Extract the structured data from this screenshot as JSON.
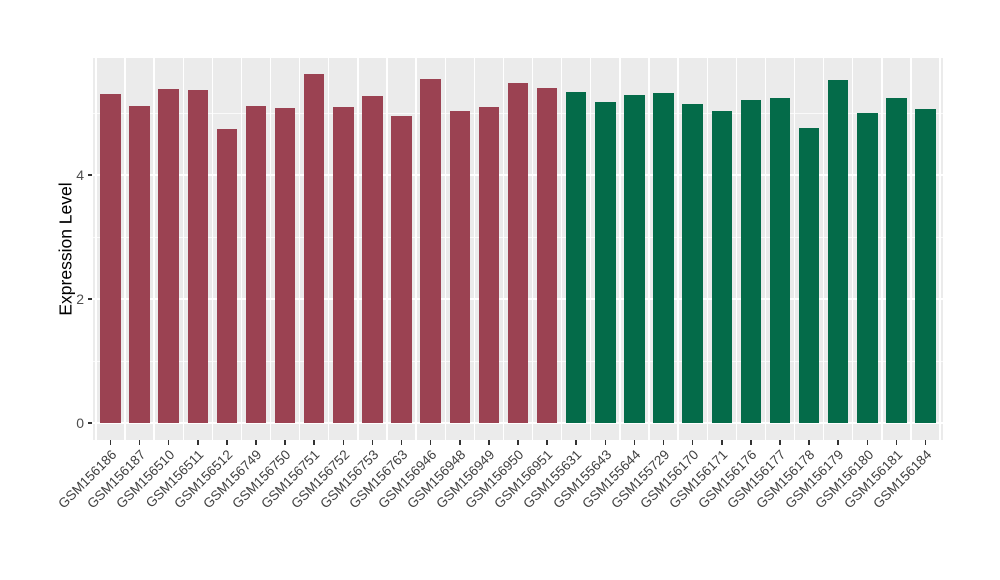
{
  "chart_data": {
    "type": "bar",
    "title": "",
    "xlabel": "",
    "ylabel": "Expression Level",
    "categories": [
      "GSM156186",
      "GSM156187",
      "GSM156510",
      "GSM156511",
      "GSM156512",
      "GSM156749",
      "GSM156750",
      "GSM156751",
      "GSM156752",
      "GSM156753",
      "GSM156763",
      "GSM156946",
      "GSM156948",
      "GSM156949",
      "GSM156950",
      "GSM156951",
      "GSM155631",
      "GSM155643",
      "GSM155644",
      "GSM155729",
      "GSM156170",
      "GSM156171",
      "GSM156176",
      "GSM156177",
      "GSM156178",
      "GSM156179",
      "GSM156180",
      "GSM156181",
      "GSM156184"
    ],
    "values": [
      5.3,
      5.11,
      5.39,
      5.37,
      4.74,
      5.11,
      5.08,
      5.63,
      5.1,
      5.28,
      4.95,
      5.55,
      5.03,
      5.1,
      5.48,
      5.41,
      5.34,
      5.17,
      5.29,
      5.32,
      5.15,
      5.03,
      5.21,
      5.24,
      4.76,
      5.54,
      5.0,
      5.24,
      5.06
    ],
    "groups": [
      "maroon",
      "maroon",
      "maroon",
      "maroon",
      "maroon",
      "maroon",
      "maroon",
      "maroon",
      "maroon",
      "maroon",
      "maroon",
      "maroon",
      "maroon",
      "maroon",
      "maroon",
      "maroon",
      "green",
      "green",
      "green",
      "green",
      "green",
      "green",
      "green",
      "green",
      "green",
      "green",
      "green",
      "green",
      "green"
    ],
    "group_colors": {
      "maroon": "#9B4252",
      "green": "#046B49"
    },
    "yticks": [
      0,
      2,
      4
    ],
    "yticks_minor": [
      1,
      3,
      5
    ],
    "ylim": [
      -0.27,
      5.89
    ],
    "grid": true,
    "legend_position": "none",
    "panel_background": "#EBEBEB",
    "grid_color": "#FFFFFF",
    "axis_text_color": "#4D4D4D"
  }
}
